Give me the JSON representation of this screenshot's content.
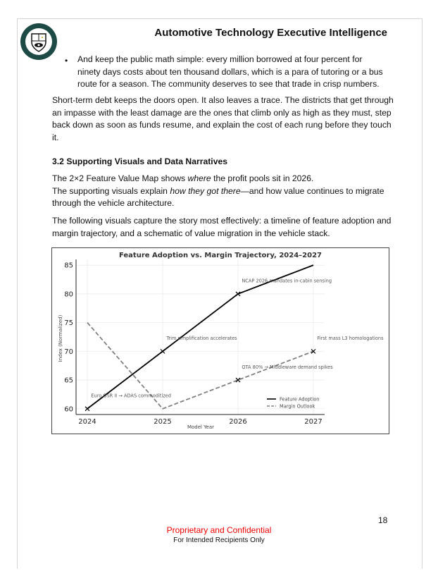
{
  "header": {
    "title": "Automotive Technology Executive Intelligence",
    "logo_text": "The Intelligence Council"
  },
  "body": {
    "bullet": "And keep the public math simple: every million borrowed at four percent for ninety days costs about ten thousand dollars, which is a para of tutoring or a bus route for a season. The community deserves to see that trade in crisp numbers.",
    "para1": "Short-term debt keeps the doors open. It also leaves a trace. The districts that get through an impasse with the least damage are the ones that climb only as high as they must, step back down as soon as funds resume, and explain the cost of each rung before they touch it.",
    "heading": "3.2 Supporting Visuals and Data Narratives",
    "para2a_pre": "The 2×2 Feature Value Map shows ",
    "para2a_em": "where",
    "para2a_post": " the profit pools sit in 2026.",
    "para2b_pre": "The supporting visuals explain ",
    "para2b_em": "how they got there",
    "para2b_post": "—and how value continues to migrate through the vehicle architecture.",
    "para3": "The following visuals capture the story most effectively: a timeline of feature adoption and margin trajectory, and a schematic of value migration in the vehicle stack."
  },
  "chart_data": {
    "type": "line",
    "title": "Feature Adoption vs. Margin Trajectory, 2024–2027",
    "xlabel": "Model Year",
    "ylabel": "Index (Normalized)",
    "x": [
      2024,
      2025,
      2026,
      2027
    ],
    "xticks": [
      "2024",
      "2025",
      "2026",
      "2027"
    ],
    "yticks": [
      "60",
      "65",
      "70",
      "75",
      "80",
      "85"
    ],
    "ylim": [
      59,
      86
    ],
    "grid": true,
    "legend": "bottom-right",
    "series": [
      {
        "name": "Feature Adoption",
        "values": [
          60,
          70,
          80,
          85
        ],
        "style": "solid",
        "color": "#000000"
      },
      {
        "name": "Margin Outlook",
        "values": [
          75,
          60,
          65,
          70
        ],
        "style": "dashed",
        "color": "#808080"
      }
    ],
    "markers": [
      {
        "x": 2024,
        "y": 60
      },
      {
        "x": 2025,
        "y": 70
      },
      {
        "x": 2026,
        "y": 80
      },
      {
        "x": 2026,
        "y": 65
      },
      {
        "x": 2027,
        "y": 70
      }
    ],
    "annotations": [
      {
        "text": "Euro GSR II → ADAS commoditized",
        "x": 2024.05,
        "y": 62
      },
      {
        "text": "Trim simplification accelerates",
        "x": 2025.05,
        "y": 72
      },
      {
        "text": "NCAP 2026 mandates in-cabin sensing",
        "x": 2026.05,
        "y": 82
      },
      {
        "text": "OTA 80% → Middleware demand spikes",
        "x": 2026.05,
        "y": 67
      },
      {
        "text": "First mass L3 homologations",
        "x": 2027.05,
        "y": 72
      }
    ]
  },
  "footer": {
    "page_number": "18",
    "confidential": "Proprietary and Confidential",
    "recipients": "For Intended Recipients Only"
  }
}
